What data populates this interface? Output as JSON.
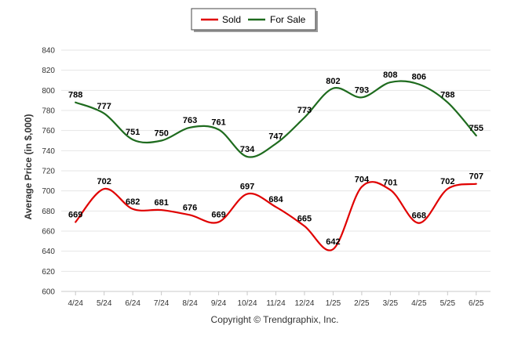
{
  "chart_data": {
    "type": "line",
    "categories": [
      "4/24",
      "5/24",
      "6/24",
      "7/24",
      "8/24",
      "9/24",
      "10/24",
      "11/24",
      "12/24",
      "1/25",
      "2/25",
      "3/25",
      "4/25",
      "5/25",
      "6/25"
    ],
    "series": [
      {
        "name": "Sold",
        "color": "#e00000",
        "values": [
          669,
          702,
          682,
          681,
          676,
          669,
          697,
          684,
          665,
          642,
          704,
          701,
          668,
          702,
          707
        ]
      },
      {
        "name": "For Sale",
        "color": "#1e6b1e",
        "values": [
          788,
          777,
          751,
          750,
          763,
          761,
          734,
          747,
          773,
          802,
          793,
          808,
          806,
          788,
          755
        ]
      }
    ],
    "ylabel": "Average Price (in $,000)",
    "ylim": [
      600,
      840
    ],
    "yticks": [
      600,
      620,
      640,
      660,
      680,
      700,
      720,
      740,
      760,
      780,
      800,
      820,
      840
    ],
    "grid": true,
    "smooth": true,
    "legend_position": "top-center",
    "footer": "Copyright © Trendgraphix, Inc."
  }
}
